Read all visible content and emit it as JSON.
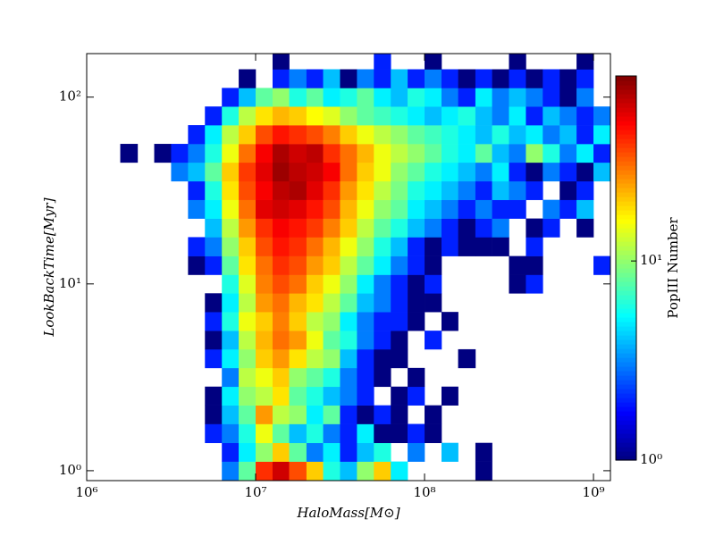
{
  "chart_data": {
    "type": "hist2d",
    "xlabel": "HaloMass[M⊙]",
    "ylabel": "LookBackTime[Myr]",
    "colorbar_label": "PopIII Number",
    "colormap": "jet",
    "xscale": "log",
    "yscale": "log",
    "cscale": "log",
    "xlim": [
      1000000.0,
      1260000000.0
    ],
    "ylim": [
      0.885,
      171
    ],
    "clim": [
      1,
      85
    ],
    "xticks": [
      {
        "value": 1000000.0,
        "label": "10⁶"
      },
      {
        "value": 10000000.0,
        "label": "10⁷"
      },
      {
        "value": 100000000.0,
        "label": "10⁸"
      },
      {
        "value": 1000000000.0,
        "label": "10⁹"
      }
    ],
    "yticks": [
      {
        "value": 1,
        "label": "10⁰"
      },
      {
        "value": 10,
        "label": "10¹"
      },
      {
        "value": 100,
        "label": "10²"
      }
    ],
    "cticks": [
      {
        "value": 1,
        "label": "10⁰"
      },
      {
        "value": 10,
        "label": "10¹"
      }
    ],
    "x_bin_edges": [
      1000000.0,
      1260000.0,
      1580000.0,
      2000000.0,
      2510000.0,
      3160000.0,
      3980000.0,
      5010000.0,
      6310000.0,
      7940000.0,
      10000000.0,
      12600000.0,
      15800000.0,
      20000000.0,
      25100000.0,
      31600000.0,
      39800000.0,
      50100000.0,
      63100000.0,
      79400000.0,
      100000000.0,
      126000000.0,
      158000000.0,
      200000000.0,
      251000000.0,
      316000000.0,
      398000000.0,
      501000000.0,
      631000000.0,
      794000000.0,
      1000000000.0,
      1260000000.0
    ],
    "y_bin_edges": [
      0.891,
      1.12,
      1.41,
      1.78,
      2.24,
      2.82,
      3.55,
      4.47,
      5.62,
      7.08,
      8.91,
      11.2,
      14.1,
      17.8,
      22.4,
      28.2,
      35.5,
      44.7,
      56.2,
      70.8,
      89.1,
      112,
      141,
      178
    ],
    "z": [
      [
        null,
        null,
        null,
        null,
        null,
        null,
        null,
        null,
        3,
        8,
        40,
        60,
        35,
        20,
        6,
        4,
        10,
        20,
        5,
        null,
        null,
        null,
        null,
        1,
        null,
        null,
        null,
        null,
        null,
        null,
        null
      ],
      [
        null,
        null,
        null,
        null,
        null,
        null,
        null,
        null,
        2,
        5,
        10,
        20,
        8,
        3,
        5,
        2,
        4,
        6,
        null,
        3,
        null,
        4,
        null,
        1,
        null,
        null,
        null,
        null,
        null,
        null,
        null
      ],
      [
        null,
        null,
        null,
        null,
        null,
        null,
        null,
        2,
        3,
        6,
        15,
        8,
        4,
        6,
        3,
        2,
        5,
        1,
        1,
        2,
        1,
        null,
        null,
        null,
        null,
        null,
        null,
        null,
        null,
        null,
        null
      ],
      [
        null,
        null,
        null,
        null,
        null,
        null,
        null,
        1,
        4,
        8,
        25,
        12,
        10,
        5,
        8,
        2,
        1,
        2,
        1,
        null,
        1,
        null,
        null,
        null,
        null,
        null,
        null,
        null,
        null,
        null,
        null
      ],
      [
        null,
        null,
        null,
        null,
        null,
        null,
        null,
        1,
        5,
        10,
        12,
        18,
        8,
        6,
        4,
        3,
        2,
        null,
        1,
        2,
        null,
        1,
        null,
        null,
        null,
        null,
        null,
        null,
        null,
        null,
        null
      ],
      [
        null,
        null,
        null,
        null,
        null,
        null,
        null,
        null,
        3,
        12,
        15,
        20,
        10,
        8,
        6,
        3,
        2,
        1,
        null,
        1,
        null,
        null,
        null,
        null,
        null,
        null,
        null,
        null,
        null,
        null,
        null
      ],
      [
        null,
        null,
        null,
        null,
        null,
        null,
        null,
        2,
        5,
        10,
        20,
        25,
        18,
        12,
        10,
        4,
        2,
        1,
        1,
        null,
        null,
        null,
        1,
        null,
        null,
        null,
        null,
        null,
        null,
        null,
        null
      ],
      [
        null,
        null,
        null,
        null,
        null,
        null,
        null,
        1,
        4,
        12,
        22,
        30,
        25,
        15,
        8,
        6,
        3,
        2,
        1,
        null,
        2,
        null,
        null,
        null,
        null,
        null,
        null,
        null,
        null,
        null,
        null
      ],
      [
        null,
        null,
        null,
        null,
        null,
        null,
        null,
        2,
        6,
        15,
        20,
        28,
        20,
        12,
        10,
        5,
        3,
        2,
        2,
        1,
        null,
        1,
        null,
        null,
        null,
        null,
        null,
        null,
        null,
        null,
        null
      ],
      [
        null,
        null,
        null,
        null,
        null,
        null,
        null,
        1,
        5,
        12,
        25,
        30,
        22,
        18,
        12,
        8,
        4,
        3,
        2,
        1,
        1,
        null,
        null,
        null,
        null,
        null,
        null,
        null,
        null,
        null,
        null
      ],
      [
        null,
        null,
        null,
        null,
        null,
        null,
        null,
        null,
        6,
        14,
        28,
        35,
        30,
        20,
        15,
        10,
        5,
        3,
        2,
        1,
        2,
        null,
        null,
        null,
        null,
        1,
        2,
        null,
        null,
        null,
        null
      ],
      [
        null,
        null,
        null,
        null,
        null,
        null,
        1,
        2,
        8,
        18,
        30,
        40,
        35,
        25,
        20,
        12,
        8,
        5,
        3,
        2,
        1,
        null,
        null,
        null,
        null,
        1,
        1,
        null,
        null,
        null,
        2
      ],
      [
        null,
        null,
        null,
        null,
        null,
        null,
        2,
        3,
        10,
        20,
        35,
        45,
        40,
        30,
        22,
        15,
        10,
        6,
        4,
        2,
        1,
        2,
        1,
        1,
        1,
        null,
        2,
        null,
        null,
        null,
        null
      ],
      [
        null,
        null,
        null,
        null,
        null,
        null,
        null,
        4,
        12,
        25,
        40,
        50,
        45,
        38,
        28,
        20,
        12,
        8,
        6,
        4,
        3,
        2,
        1,
        2,
        3,
        null,
        1,
        2,
        null,
        1,
        null
      ],
      [
        null,
        null,
        null,
        null,
        null,
        null,
        3,
        5,
        15,
        30,
        55,
        60,
        55,
        45,
        35,
        22,
        15,
        10,
        8,
        5,
        4,
        3,
        2,
        3,
        2,
        2,
        null,
        3,
        2,
        4,
        null
      ],
      [
        null,
        null,
        null,
        null,
        null,
        null,
        2,
        6,
        18,
        35,
        50,
        65,
        70,
        55,
        40,
        25,
        18,
        12,
        9,
        6,
        5,
        4,
        3,
        2,
        4,
        3,
        2,
        null,
        1,
        2,
        null
      ],
      [
        null,
        null,
        null,
        null,
        null,
        3,
        4,
        8,
        20,
        38,
        55,
        75,
        65,
        60,
        50,
        30,
        20,
        15,
        10,
        8,
        6,
        5,
        4,
        3,
        5,
        2,
        1,
        3,
        2,
        1,
        4
      ],
      [
        null,
        null,
        1,
        null,
        1,
        2,
        3,
        6,
        15,
        30,
        50,
        70,
        60,
        65,
        40,
        30,
        22,
        15,
        12,
        10,
        8,
        6,
        5,
        8,
        4,
        3,
        10,
        6,
        3,
        5,
        2
      ],
      [
        null,
        null,
        null,
        null,
        null,
        null,
        2,
        5,
        12,
        20,
        35,
        45,
        40,
        35,
        28,
        20,
        15,
        12,
        10,
        8,
        7,
        6,
        5,
        4,
        6,
        4,
        5,
        3,
        4,
        2,
        5
      ],
      [
        null,
        null,
        null,
        null,
        null,
        null,
        null,
        2,
        6,
        12,
        18,
        22,
        20,
        16,
        14,
        10,
        8,
        7,
        6,
        5,
        4,
        5,
        6,
        4,
        3,
        5,
        2,
        4,
        3,
        2,
        3
      ],
      [
        null,
        null,
        null,
        null,
        null,
        null,
        null,
        null,
        2,
        4,
        8,
        10,
        6,
        8,
        5,
        6,
        8,
        5,
        4,
        6,
        5,
        3,
        2,
        5,
        3,
        4,
        3,
        2,
        1,
        3,
        null
      ],
      [
        null,
        null,
        null,
        null,
        null,
        null,
        null,
        null,
        null,
        1,
        null,
        2,
        3,
        2,
        4,
        1,
        3,
        2,
        4,
        2,
        3,
        2,
        1,
        2,
        1,
        2,
        1,
        2,
        1,
        2,
        null
      ],
      [
        null,
        null,
        null,
        null,
        null,
        null,
        null,
        null,
        null,
        null,
        null,
        1,
        null,
        null,
        null,
        null,
        null,
        2,
        null,
        null,
        1,
        null,
        null,
        null,
        null,
        1,
        null,
        null,
        null,
        1,
        null
      ]
    ]
  }
}
